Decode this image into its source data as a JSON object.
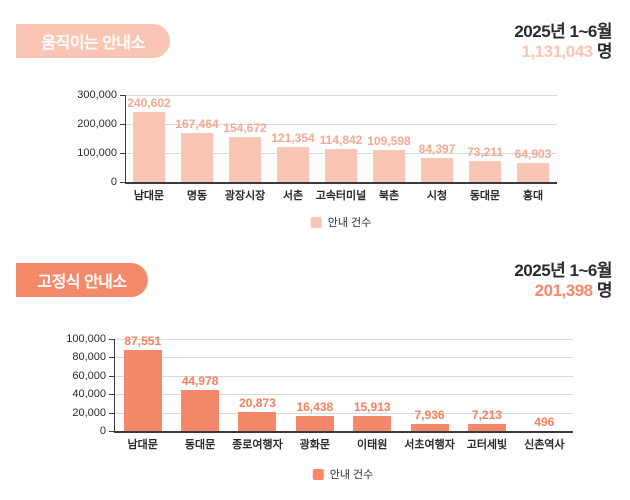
{
  "sections": [
    {
      "badge_label": "움직이는 안내소",
      "period": "2025년 1~6월",
      "total": "1,131,043",
      "unit": "명",
      "accent": "#f9c5b5"
    },
    {
      "badge_label": "고정식 안내소",
      "period": "2025년 1~6월",
      "total": "201,398",
      "unit": "명",
      "accent": "#f58a6b"
    }
  ],
  "chart_data": [
    {
      "type": "bar",
      "title": "움직이는 안내소",
      "categories": [
        "남대문",
        "명동",
        "광장시장",
        "서촌",
        "고속터미널",
        "북촌",
        "시청",
        "동대문",
        "홍대"
      ],
      "values": [
        240602,
        167464,
        154672,
        121354,
        114842,
        109598,
        84397,
        73211,
        64903
      ],
      "ylim": [
        0,
        300000
      ],
      "yticks": [
        0,
        100000,
        200000,
        300000
      ],
      "legend": [
        "안내 건수"
      ],
      "legend_position": "bottom",
      "grid": true,
      "bar_color": "#f9c5b5",
      "value_label_color": "#f5a893",
      "grid_color": "#d9d9d9",
      "axis_color": "#3d3d3d"
    },
    {
      "type": "bar",
      "title": "고정식 안내소",
      "categories": [
        "남대문",
        "동대문",
        "종로여행자",
        "광화문",
        "이태원",
        "서초여행자",
        "고터세빛",
        "신촌역사"
      ],
      "values": [
        87551,
        44978,
        20873,
        16438,
        15913,
        7936,
        7213,
        496
      ],
      "ylim": [
        0,
        100000
      ],
      "yticks": [
        0,
        20000,
        40000,
        60000,
        80000,
        100000
      ],
      "legend": [
        "안내 건수"
      ],
      "legend_position": "bottom",
      "grid": true,
      "bar_color": "#f5876a",
      "value_label_color": "#f2815f",
      "grid_color": "#d9d9d9",
      "axis_color": "#3d3d3d"
    }
  ]
}
